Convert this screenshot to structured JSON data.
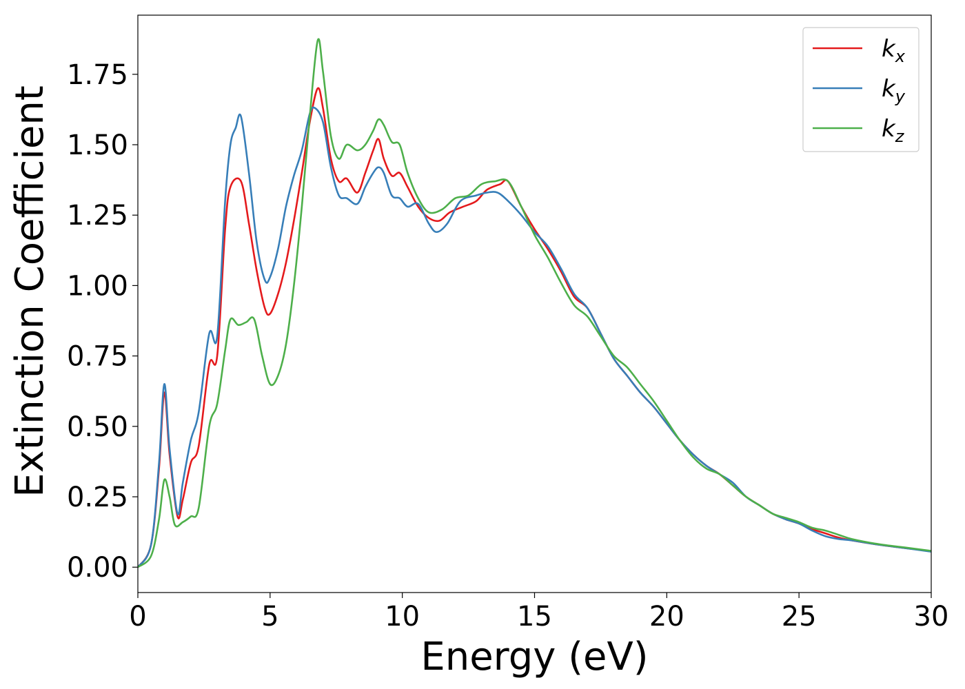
{
  "chart_data": {
    "type": "line",
    "title": "",
    "xlabel": "Energy (eV)",
    "ylabel": "Extinction Coefficient",
    "xlim": [
      0,
      30
    ],
    "ylim": [
      -0.09,
      1.96
    ],
    "xticks": [
      0,
      5,
      10,
      15,
      20,
      25,
      30
    ],
    "xtick_labels": [
      "0",
      "5",
      "10",
      "15",
      "20",
      "25",
      "30"
    ],
    "yticks": [
      0,
      0.25,
      0.5,
      0.75,
      1.0,
      1.25,
      1.5,
      1.75
    ],
    "ytick_labels": [
      "0.00",
      "0.25",
      "0.50",
      "0.75",
      "1.00",
      "1.25",
      "1.50",
      "1.75"
    ],
    "grid": false,
    "legend_position": "top-right",
    "series": [
      {
        "name": "k_x",
        "legend_base": "k",
        "legend_sub": "x",
        "color": "#e41a1c",
        "points": [
          [
            0,
            0
          ],
          [
            0.5,
            0.08
          ],
          [
            0.8,
            0.35
          ],
          [
            1.0,
            0.62
          ],
          [
            1.2,
            0.4
          ],
          [
            1.5,
            0.18
          ],
          [
            1.7,
            0.24
          ],
          [
            2.0,
            0.37
          ],
          [
            2.3,
            0.43
          ],
          [
            2.7,
            0.72
          ],
          [
            3.0,
            0.75
          ],
          [
            3.3,
            1.2
          ],
          [
            3.5,
            1.35
          ],
          [
            3.9,
            1.37
          ],
          [
            4.2,
            1.22
          ],
          [
            4.5,
            1.05
          ],
          [
            4.8,
            0.92
          ],
          [
            5.0,
            0.9
          ],
          [
            5.3,
            0.97
          ],
          [
            5.6,
            1.08
          ],
          [
            5.9,
            1.23
          ],
          [
            6.2,
            1.4
          ],
          [
            6.5,
            1.58
          ],
          [
            6.8,
            1.7
          ],
          [
            7.0,
            1.63
          ],
          [
            7.3,
            1.45
          ],
          [
            7.6,
            1.37
          ],
          [
            7.9,
            1.38
          ],
          [
            8.3,
            1.33
          ],
          [
            8.6,
            1.4
          ],
          [
            8.9,
            1.48
          ],
          [
            9.1,
            1.52
          ],
          [
            9.3,
            1.45
          ],
          [
            9.6,
            1.39
          ],
          [
            9.9,
            1.4
          ],
          [
            10.2,
            1.35
          ],
          [
            10.6,
            1.28
          ],
          [
            11.0,
            1.24
          ],
          [
            11.4,
            1.23
          ],
          [
            11.8,
            1.26
          ],
          [
            12.3,
            1.28
          ],
          [
            12.8,
            1.3
          ],
          [
            13.2,
            1.34
          ],
          [
            13.7,
            1.36
          ],
          [
            14.0,
            1.37
          ],
          [
            14.5,
            1.28
          ],
          [
            15.0,
            1.2
          ],
          [
            15.5,
            1.13
          ],
          [
            16.0,
            1.05
          ],
          [
            16.5,
            0.96
          ],
          [
            17.0,
            0.92
          ],
          [
            17.5,
            0.83
          ],
          [
            18.0,
            0.74
          ],
          [
            18.5,
            0.68
          ],
          [
            19.0,
            0.62
          ],
          [
            19.5,
            0.57
          ],
          [
            20.0,
            0.51
          ],
          [
            20.5,
            0.45
          ],
          [
            21.0,
            0.4
          ],
          [
            21.5,
            0.36
          ],
          [
            22.0,
            0.33
          ],
          [
            22.5,
            0.29
          ],
          [
            23.0,
            0.25
          ],
          [
            23.5,
            0.22
          ],
          [
            24.0,
            0.19
          ],
          [
            24.5,
            0.17
          ],
          [
            25.0,
            0.155
          ],
          [
            25.5,
            0.135
          ],
          [
            26.0,
            0.12
          ],
          [
            26.5,
            0.105
          ],
          [
            27.0,
            0.095
          ],
          [
            28.0,
            0.08
          ],
          [
            29.0,
            0.068
          ],
          [
            30.0,
            0.057
          ]
        ]
      },
      {
        "name": "k_y",
        "legend_base": "k",
        "legend_sub": "y",
        "color": "#377eb8",
        "points": [
          [
            0,
            0
          ],
          [
            0.5,
            0.08
          ],
          [
            0.8,
            0.37
          ],
          [
            1.0,
            0.65
          ],
          [
            1.2,
            0.42
          ],
          [
            1.5,
            0.19
          ],
          [
            1.7,
            0.3
          ],
          [
            2.0,
            0.45
          ],
          [
            2.3,
            0.55
          ],
          [
            2.7,
            0.83
          ],
          [
            3.0,
            0.82
          ],
          [
            3.3,
            1.3
          ],
          [
            3.5,
            1.5
          ],
          [
            3.7,
            1.56
          ],
          [
            3.9,
            1.6
          ],
          [
            4.2,
            1.4
          ],
          [
            4.5,
            1.15
          ],
          [
            4.8,
            1.02
          ],
          [
            5.0,
            1.03
          ],
          [
            5.3,
            1.13
          ],
          [
            5.6,
            1.28
          ],
          [
            5.9,
            1.39
          ],
          [
            6.2,
            1.48
          ],
          [
            6.5,
            1.61
          ],
          [
            6.7,
            1.63
          ],
          [
            7.0,
            1.58
          ],
          [
            7.3,
            1.42
          ],
          [
            7.6,
            1.32
          ],
          [
            7.9,
            1.31
          ],
          [
            8.3,
            1.29
          ],
          [
            8.6,
            1.35
          ],
          [
            8.9,
            1.4
          ],
          [
            9.1,
            1.42
          ],
          [
            9.3,
            1.4
          ],
          [
            9.6,
            1.32
          ],
          [
            9.9,
            1.31
          ],
          [
            10.2,
            1.28
          ],
          [
            10.6,
            1.29
          ],
          [
            11.0,
            1.22
          ],
          [
            11.3,
            1.19
          ],
          [
            11.7,
            1.22
          ],
          [
            12.2,
            1.3
          ],
          [
            12.8,
            1.32
          ],
          [
            13.2,
            1.33
          ],
          [
            13.6,
            1.33
          ],
          [
            14.0,
            1.3
          ],
          [
            14.5,
            1.25
          ],
          [
            15.0,
            1.19
          ],
          [
            15.5,
            1.14
          ],
          [
            16.0,
            1.06
          ],
          [
            16.5,
            0.97
          ],
          [
            17.0,
            0.92
          ],
          [
            17.5,
            0.83
          ],
          [
            18.0,
            0.74
          ],
          [
            18.5,
            0.68
          ],
          [
            19.0,
            0.62
          ],
          [
            19.5,
            0.57
          ],
          [
            20.0,
            0.51
          ],
          [
            20.5,
            0.45
          ],
          [
            21.0,
            0.4
          ],
          [
            21.5,
            0.36
          ],
          [
            22.0,
            0.33
          ],
          [
            22.5,
            0.3
          ],
          [
            23.0,
            0.25
          ],
          [
            23.5,
            0.22
          ],
          [
            24.0,
            0.19
          ],
          [
            24.5,
            0.17
          ],
          [
            25.0,
            0.155
          ],
          [
            25.5,
            0.13
          ],
          [
            26.0,
            0.11
          ],
          [
            26.5,
            0.1
          ],
          [
            27.0,
            0.095
          ],
          [
            28.0,
            0.08
          ],
          [
            29.0,
            0.068
          ],
          [
            30.0,
            0.055
          ]
        ]
      },
      {
        "name": "k_z",
        "legend_base": "k",
        "legend_sub": "z",
        "color": "#4daf4a",
        "points": [
          [
            0,
            0
          ],
          [
            0.5,
            0.04
          ],
          [
            0.8,
            0.17
          ],
          [
            1.0,
            0.31
          ],
          [
            1.2,
            0.25
          ],
          [
            1.4,
            0.15
          ],
          [
            1.7,
            0.16
          ],
          [
            2.0,
            0.18
          ],
          [
            2.3,
            0.21
          ],
          [
            2.7,
            0.5
          ],
          [
            3.0,
            0.58
          ],
          [
            3.3,
            0.77
          ],
          [
            3.5,
            0.88
          ],
          [
            3.8,
            0.86
          ],
          [
            4.1,
            0.87
          ],
          [
            4.4,
            0.88
          ],
          [
            4.7,
            0.75
          ],
          [
            5.0,
            0.65
          ],
          [
            5.3,
            0.68
          ],
          [
            5.6,
            0.79
          ],
          [
            5.9,
            1.0
          ],
          [
            6.2,
            1.28
          ],
          [
            6.5,
            1.6
          ],
          [
            6.8,
            1.87
          ],
          [
            7.0,
            1.76
          ],
          [
            7.3,
            1.53
          ],
          [
            7.6,
            1.45
          ],
          [
            7.9,
            1.5
          ],
          [
            8.3,
            1.48
          ],
          [
            8.6,
            1.5
          ],
          [
            8.9,
            1.55
          ],
          [
            9.1,
            1.59
          ],
          [
            9.3,
            1.57
          ],
          [
            9.6,
            1.51
          ],
          [
            9.9,
            1.5
          ],
          [
            10.2,
            1.4
          ],
          [
            10.6,
            1.31
          ],
          [
            11.0,
            1.26
          ],
          [
            11.5,
            1.27
          ],
          [
            12.0,
            1.31
          ],
          [
            12.5,
            1.32
          ],
          [
            13.0,
            1.36
          ],
          [
            13.5,
            1.37
          ],
          [
            14.0,
            1.37
          ],
          [
            14.5,
            1.28
          ],
          [
            15.0,
            1.18
          ],
          [
            15.5,
            1.1
          ],
          [
            16.0,
            1.01
          ],
          [
            16.5,
            0.93
          ],
          [
            17.0,
            0.89
          ],
          [
            17.5,
            0.82
          ],
          [
            18.0,
            0.75
          ],
          [
            18.5,
            0.71
          ],
          [
            19.0,
            0.65
          ],
          [
            19.5,
            0.59
          ],
          [
            20.0,
            0.52
          ],
          [
            20.5,
            0.45
          ],
          [
            21.0,
            0.39
          ],
          [
            21.5,
            0.35
          ],
          [
            22.0,
            0.33
          ],
          [
            22.5,
            0.29
          ],
          [
            23.0,
            0.25
          ],
          [
            23.5,
            0.22
          ],
          [
            24.0,
            0.19
          ],
          [
            24.5,
            0.175
          ],
          [
            25.0,
            0.16
          ],
          [
            25.5,
            0.14
          ],
          [
            26.0,
            0.13
          ],
          [
            26.5,
            0.115
          ],
          [
            27.0,
            0.1
          ],
          [
            28.0,
            0.082
          ],
          [
            29.0,
            0.07
          ],
          [
            30.0,
            0.058
          ]
        ]
      }
    ]
  }
}
